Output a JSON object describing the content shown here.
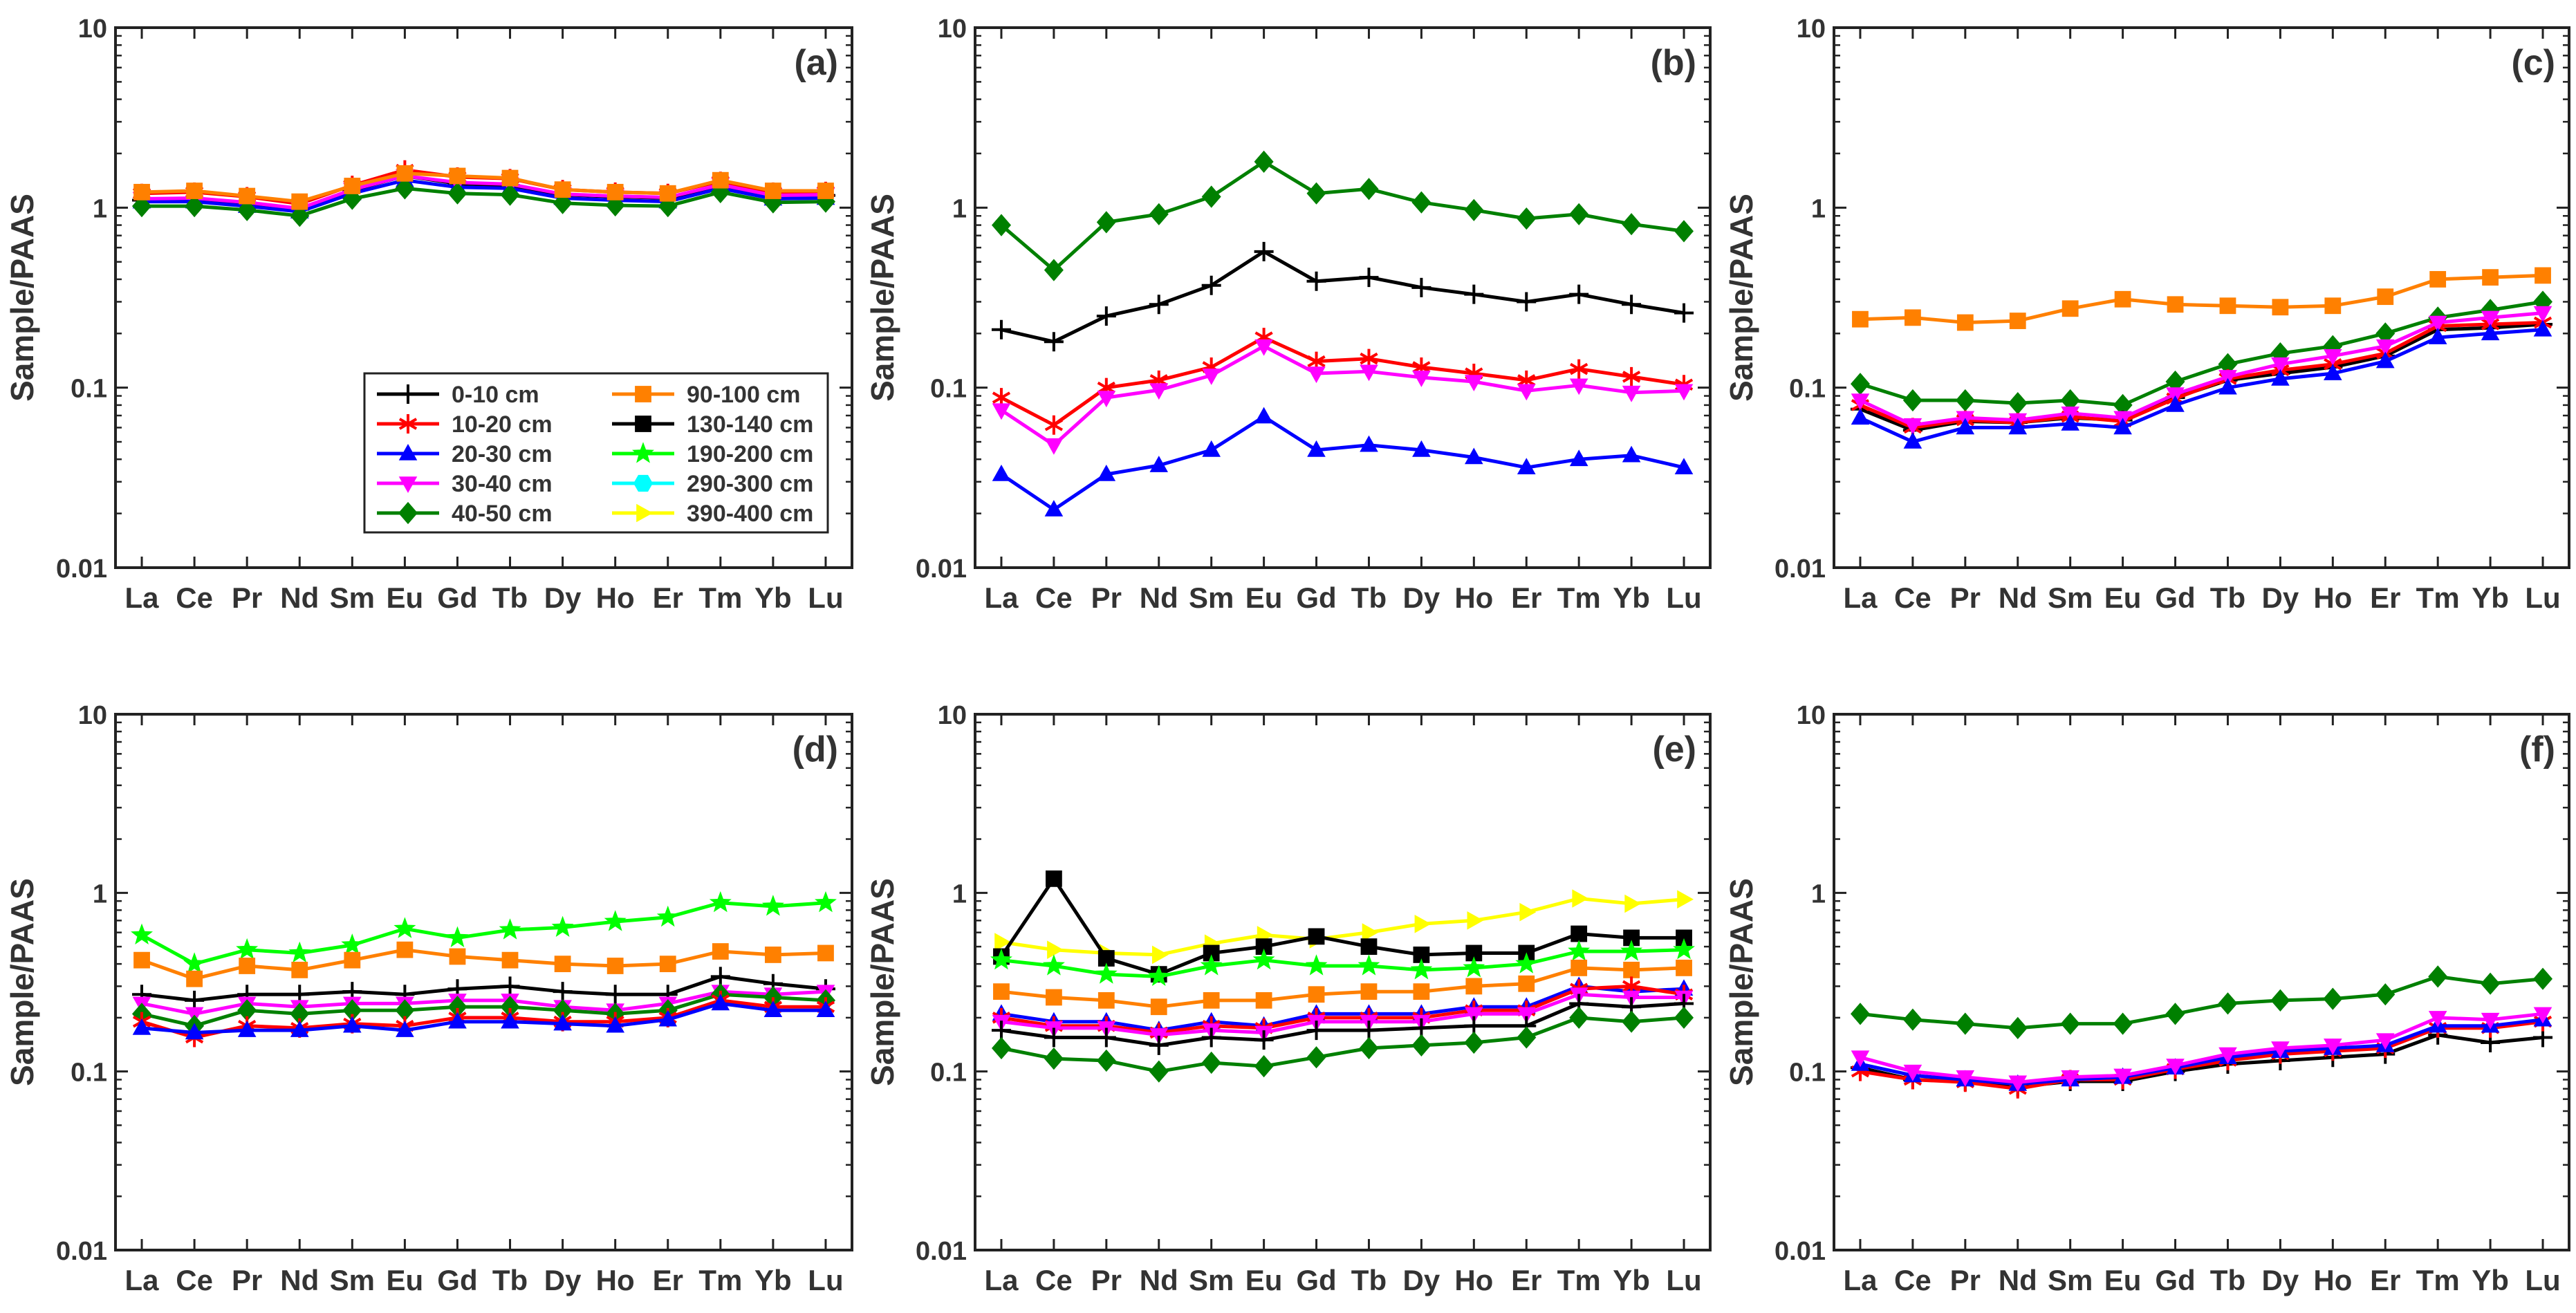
{
  "figure": {
    "categories": [
      "La",
      "Ce",
      "Pr",
      "Nd",
      "Sm",
      "Eu",
      "Gd",
      "Tb",
      "Dy",
      "Ho",
      "Er",
      "Tm",
      "Yb",
      "Lu"
    ],
    "ylabel": "Sample/PAAS",
    "y_ticks": [
      "0.01",
      "0.1",
      "1",
      "10"
    ],
    "ylim": [
      0.01,
      10
    ],
    "yscale": "log",
    "legend_panel": "a"
  },
  "series_styles": {
    "0-10 cm": {
      "color": "#000000",
      "marker": "plus"
    },
    "10-20 cm": {
      "color": "#ff0000",
      "marker": "asterisk"
    },
    "20-30 cm": {
      "color": "#0000ff",
      "marker": "triangle-up"
    },
    "30-40 cm": {
      "color": "#ff00ff",
      "marker": "triangle-down"
    },
    "40-50 cm": {
      "color": "#008000",
      "marker": "diamond"
    },
    "90-100 cm": {
      "color": "#ff8000",
      "marker": "square"
    },
    "130-140 cm": {
      "color": "#000000",
      "marker": "square"
    },
    "190-200 cm": {
      "color": "#00ff00",
      "marker": "star"
    },
    "290-300 cm": {
      "color": "#00ffff",
      "marker": "hexagon"
    },
    "390-400 cm": {
      "color": "#ffff00",
      "marker": "triangle-right"
    }
  },
  "legend": {
    "columns": [
      [
        "0-10 cm",
        "10-20 cm",
        "20-30 cm",
        "30-40 cm",
        "40-50 cm"
      ],
      [
        "90-100 cm",
        "130-140 cm",
        "190-200 cm",
        "290-300 cm",
        "390-400 cm"
      ]
    ]
  },
  "chart_data": [
    {
      "panel": "a",
      "label": "(a)",
      "type": "line",
      "title": "(a)",
      "xlabel": "",
      "ylabel": "Sample/PAAS",
      "ylim": [
        0.01,
        10
      ],
      "yscale": "log",
      "categories": [
        "La",
        "Ce",
        "Pr",
        "Nd",
        "Sm",
        "Eu",
        "Gd",
        "Tb",
        "Dy",
        "Ho",
        "Er",
        "Tm",
        "Yb",
        "Lu"
      ],
      "series": [
        {
          "name": "0-10 cm",
          "values": [
            1.1,
            1.12,
            1.06,
            0.98,
            1.25,
            1.5,
            1.36,
            1.33,
            1.18,
            1.15,
            1.13,
            1.32,
            1.16,
            1.17
          ]
        },
        {
          "name": "10-20 cm",
          "values": [
            1.2,
            1.22,
            1.15,
            1.05,
            1.33,
            1.62,
            1.48,
            1.45,
            1.26,
            1.22,
            1.2,
            1.4,
            1.22,
            1.23
          ]
        },
        {
          "name": "20-30 cm",
          "values": [
            1.08,
            1.08,
            1.02,
            0.95,
            1.2,
            1.42,
            1.3,
            1.28,
            1.13,
            1.1,
            1.08,
            1.28,
            1.12,
            1.13
          ]
        },
        {
          "name": "30-40 cm",
          "values": [
            1.12,
            1.13,
            1.07,
            0.99,
            1.26,
            1.5,
            1.38,
            1.35,
            1.19,
            1.16,
            1.14,
            1.34,
            1.17,
            1.18
          ]
        },
        {
          "name": "40-50 cm",
          "values": [
            1.02,
            1.02,
            0.97,
            0.9,
            1.12,
            1.28,
            1.2,
            1.18,
            1.06,
            1.03,
            1.02,
            1.22,
            1.07,
            1.08
          ]
        },
        {
          "name": "90-100 cm",
          "values": [
            1.22,
            1.24,
            1.16,
            1.08,
            1.32,
            1.55,
            1.5,
            1.46,
            1.26,
            1.22,
            1.2,
            1.42,
            1.24,
            1.24
          ]
        }
      ]
    },
    {
      "panel": "b",
      "label": "(b)",
      "type": "line",
      "title": "(b)",
      "xlabel": "",
      "ylabel": "Sample/PAAS",
      "ylim": [
        0.01,
        10
      ],
      "yscale": "log",
      "categories": [
        "La",
        "Ce",
        "Pr",
        "Nd",
        "Sm",
        "Eu",
        "Gd",
        "Tb",
        "Dy",
        "Ho",
        "Er",
        "Tm",
        "Yb",
        "Lu"
      ],
      "series": [
        {
          "name": "40-50 cm",
          "values": [
            0.8,
            0.45,
            0.83,
            0.92,
            1.15,
            1.8,
            1.2,
            1.27,
            1.07,
            0.97,
            0.87,
            0.92,
            0.81,
            0.74
          ]
        },
        {
          "name": "0-10 cm",
          "values": [
            0.21,
            0.18,
            0.25,
            0.29,
            0.37,
            0.57,
            0.39,
            0.41,
            0.36,
            0.33,
            0.3,
            0.33,
            0.29,
            0.26
          ]
        },
        {
          "name": "10-20 cm",
          "values": [
            0.088,
            0.062,
            0.1,
            0.11,
            0.13,
            0.19,
            0.14,
            0.145,
            0.13,
            0.12,
            0.11,
            0.127,
            0.115,
            0.104
          ]
        },
        {
          "name": "30-40 cm",
          "values": [
            0.075,
            0.048,
            0.088,
            0.097,
            0.117,
            0.17,
            0.12,
            0.123,
            0.114,
            0.108,
            0.096,
            0.103,
            0.094,
            0.096
          ]
        },
        {
          "name": "20-30 cm",
          "values": [
            0.033,
            0.021,
            0.033,
            0.037,
            0.045,
            0.069,
            0.045,
            0.048,
            0.045,
            0.041,
            0.036,
            0.04,
            0.042,
            0.036
          ]
        }
      ]
    },
    {
      "panel": "c",
      "label": "(c)",
      "type": "line",
      "title": "(c)",
      "xlabel": "",
      "ylabel": "Sample/PAAS",
      "ylim": [
        0.01,
        10
      ],
      "yscale": "log",
      "categories": [
        "La",
        "Ce",
        "Pr",
        "Nd",
        "Sm",
        "Eu",
        "Gd",
        "Tb",
        "Dy",
        "Ho",
        "Er",
        "Tm",
        "Yb",
        "Lu"
      ],
      "series": [
        {
          "name": "90-100 cm",
          "values": [
            0.24,
            0.245,
            0.23,
            0.235,
            0.275,
            0.31,
            0.29,
            0.285,
            0.28,
            0.285,
            0.32,
            0.4,
            0.41,
            0.42
          ]
        },
        {
          "name": "40-50 cm",
          "values": [
            0.105,
            0.085,
            0.085,
            0.082,
            0.085,
            0.08,
            0.108,
            0.135,
            0.155,
            0.17,
            0.2,
            0.245,
            0.27,
            0.3
          ]
        },
        {
          "name": "0-10 cm",
          "values": [
            0.076,
            0.058,
            0.065,
            0.064,
            0.068,
            0.066,
            0.088,
            0.11,
            0.12,
            0.13,
            0.15,
            0.21,
            0.215,
            0.225
          ]
        },
        {
          "name": "10-20 cm",
          "values": [
            0.08,
            0.06,
            0.066,
            0.064,
            0.069,
            0.065,
            0.087,
            0.112,
            0.125,
            0.135,
            0.155,
            0.22,
            0.225,
            0.23
          ]
        },
        {
          "name": "30-40 cm",
          "values": [
            0.085,
            0.062,
            0.068,
            0.066,
            0.072,
            0.068,
            0.092,
            0.115,
            0.135,
            0.15,
            0.17,
            0.23,
            0.245,
            0.26
          ]
        },
        {
          "name": "20-30 cm",
          "values": [
            0.068,
            0.05,
            0.06,
            0.06,
            0.063,
            0.06,
            0.08,
            0.1,
            0.112,
            0.12,
            0.14,
            0.19,
            0.2,
            0.21
          ]
        }
      ]
    },
    {
      "panel": "d",
      "label": "(d)",
      "type": "line",
      "title": "(d)",
      "xlabel": "",
      "ylabel": "Sample/PAAS",
      "ylim": [
        0.01,
        10
      ],
      "yscale": "log",
      "categories": [
        "La",
        "Ce",
        "Pr",
        "Nd",
        "Sm",
        "Eu",
        "Gd",
        "Tb",
        "Dy",
        "Ho",
        "Er",
        "Tm",
        "Yb",
        "Lu"
      ],
      "series": [
        {
          "name": "190-200 cm",
          "values": [
            0.58,
            0.4,
            0.48,
            0.46,
            0.51,
            0.63,
            0.56,
            0.62,
            0.64,
            0.69,
            0.73,
            0.88,
            0.84,
            0.88
          ]
        },
        {
          "name": "90-100 cm",
          "values": [
            0.42,
            0.33,
            0.39,
            0.37,
            0.42,
            0.48,
            0.44,
            0.42,
            0.4,
            0.39,
            0.4,
            0.47,
            0.45,
            0.46
          ]
        },
        {
          "name": "0-10 cm",
          "values": [
            0.27,
            0.25,
            0.27,
            0.27,
            0.28,
            0.27,
            0.29,
            0.3,
            0.28,
            0.27,
            0.27,
            0.34,
            0.31,
            0.29
          ]
        },
        {
          "name": "30-40 cm",
          "values": [
            0.24,
            0.21,
            0.24,
            0.23,
            0.24,
            0.24,
            0.25,
            0.25,
            0.23,
            0.22,
            0.24,
            0.28,
            0.27,
            0.28
          ]
        },
        {
          "name": "40-50 cm",
          "values": [
            0.21,
            0.18,
            0.22,
            0.21,
            0.22,
            0.22,
            0.23,
            0.23,
            0.22,
            0.21,
            0.22,
            0.27,
            0.26,
            0.25
          ]
        },
        {
          "name": "10-20 cm",
          "values": [
            0.19,
            0.155,
            0.18,
            0.175,
            0.185,
            0.18,
            0.2,
            0.2,
            0.19,
            0.19,
            0.2,
            0.25,
            0.23,
            0.23
          ]
        },
        {
          "name": "20-30 cm",
          "values": [
            0.175,
            0.165,
            0.17,
            0.17,
            0.18,
            0.17,
            0.19,
            0.19,
            0.185,
            0.18,
            0.195,
            0.24,
            0.22,
            0.22
          ]
        }
      ]
    },
    {
      "panel": "e",
      "label": "(e)",
      "type": "line",
      "title": "(e)",
      "xlabel": "",
      "ylabel": "Sample/PAAS",
      "ylim": [
        0.01,
        10
      ],
      "yscale": "log",
      "categories": [
        "La",
        "Ce",
        "Pr",
        "Nd",
        "Sm",
        "Eu",
        "Gd",
        "Tb",
        "Dy",
        "Ho",
        "Er",
        "Tm",
        "Yb",
        "Lu"
      ],
      "series": [
        {
          "name": "390-400 cm",
          "values": [
            0.53,
            0.48,
            0.46,
            0.45,
            0.52,
            0.58,
            0.55,
            0.6,
            0.67,
            0.7,
            0.78,
            0.93,
            0.87,
            0.92
          ]
        },
        {
          "name": "130-140 cm",
          "values": [
            0.44,
            1.2,
            0.43,
            0.35,
            0.46,
            0.5,
            0.57,
            0.5,
            0.45,
            0.46,
            0.46,
            0.59,
            0.56,
            0.56
          ]
        },
        {
          "name": "190-200 cm",
          "values": [
            0.42,
            0.39,
            0.35,
            0.34,
            0.39,
            0.42,
            0.39,
            0.39,
            0.37,
            0.38,
            0.4,
            0.47,
            0.47,
            0.48
          ]
        },
        {
          "name": "90-100 cm",
          "values": [
            0.28,
            0.26,
            0.25,
            0.23,
            0.25,
            0.25,
            0.27,
            0.28,
            0.28,
            0.3,
            0.31,
            0.38,
            0.37,
            0.38
          ]
        },
        {
          "name": "20-30 cm",
          "values": [
            0.21,
            0.19,
            0.19,
            0.17,
            0.19,
            0.18,
            0.21,
            0.21,
            0.21,
            0.23,
            0.23,
            0.3,
            0.28,
            0.29
          ]
        },
        {
          "name": "10-20 cm",
          "values": [
            0.2,
            0.18,
            0.18,
            0.165,
            0.18,
            0.175,
            0.2,
            0.2,
            0.2,
            0.22,
            0.22,
            0.29,
            0.3,
            0.27
          ]
        },
        {
          "name": "30-40 cm",
          "values": [
            0.19,
            0.175,
            0.175,
            0.16,
            0.17,
            0.165,
            0.19,
            0.19,
            0.19,
            0.21,
            0.21,
            0.27,
            0.26,
            0.26
          ]
        },
        {
          "name": "0-10 cm",
          "values": [
            0.17,
            0.155,
            0.155,
            0.14,
            0.155,
            0.15,
            0.17,
            0.17,
            0.175,
            0.18,
            0.18,
            0.24,
            0.23,
            0.24
          ]
        },
        {
          "name": "40-50 cm",
          "values": [
            0.135,
            0.118,
            0.115,
            0.1,
            0.112,
            0.107,
            0.12,
            0.135,
            0.14,
            0.145,
            0.155,
            0.2,
            0.19,
            0.2
          ]
        }
      ]
    },
    {
      "panel": "f",
      "label": "(f)",
      "type": "line",
      "title": "(f)",
      "xlabel": "",
      "ylabel": "Sample/PAAS",
      "ylim": [
        0.01,
        10
      ],
      "yscale": "log",
      "categories": [
        "La",
        "Ce",
        "Pr",
        "Nd",
        "Sm",
        "Eu",
        "Gd",
        "Tb",
        "Dy",
        "Ho",
        "Er",
        "Tm",
        "Yb",
        "Lu"
      ],
      "series": [
        {
          "name": "40-50 cm",
          "values": [
            0.21,
            0.195,
            0.185,
            0.175,
            0.185,
            0.185,
            0.21,
            0.24,
            0.25,
            0.255,
            0.27,
            0.34,
            0.31,
            0.33
          ]
        },
        {
          "name": "0-10 cm",
          "values": [
            0.105,
            0.09,
            0.088,
            0.082,
            0.088,
            0.088,
            0.1,
            0.11,
            0.115,
            0.12,
            0.125,
            0.16,
            0.145,
            0.155
          ]
        },
        {
          "name": "10-20 cm",
          "values": [
            0.1,
            0.09,
            0.087,
            0.08,
            0.09,
            0.09,
            0.103,
            0.115,
            0.125,
            0.13,
            0.135,
            0.175,
            0.175,
            0.19
          ]
        },
        {
          "name": "20-30 cm",
          "values": [
            0.11,
            0.095,
            0.09,
            0.085,
            0.09,
            0.093,
            0.105,
            0.12,
            0.13,
            0.135,
            0.14,
            0.18,
            0.18,
            0.195
          ]
        },
        {
          "name": "30-40 cm",
          "values": [
            0.12,
            0.1,
            0.093,
            0.087,
            0.093,
            0.095,
            0.108,
            0.125,
            0.135,
            0.14,
            0.15,
            0.2,
            0.195,
            0.21
          ]
        }
      ]
    }
  ]
}
